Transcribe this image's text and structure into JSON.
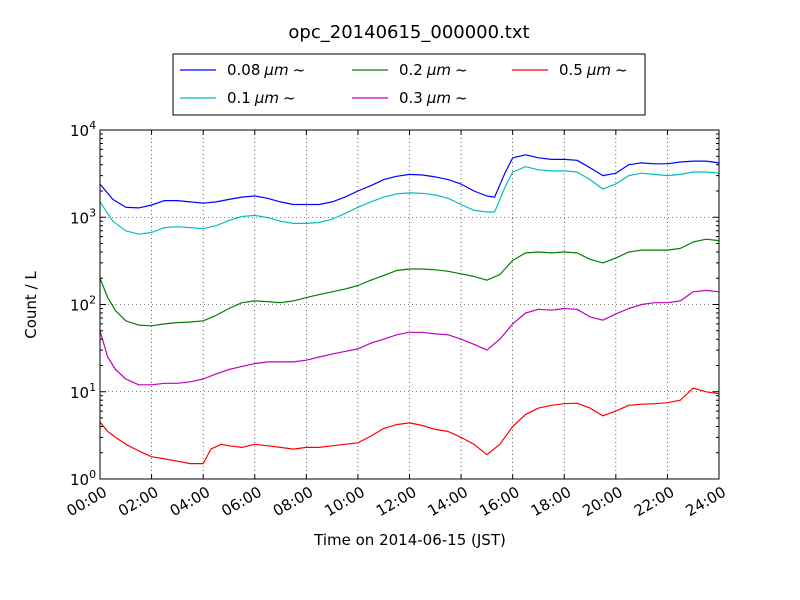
{
  "chart_data": {
    "type": "line",
    "title": "opc_20140615_000000.txt",
    "xlabel": "Time on 2014-06-15 (JST)",
    "ylabel": "Count / L",
    "x_unit": "hours",
    "xlim": [
      0,
      24
    ],
    "ylim": [
      1,
      10000
    ],
    "y_scale": "log",
    "grid": true,
    "legend_placement": "top-center",
    "x_ticks": [
      {
        "value": 0,
        "label": "00:00"
      },
      {
        "value": 2,
        "label": "02:00"
      },
      {
        "value": 4,
        "label": "04:00"
      },
      {
        "value": 6,
        "label": "06:00"
      },
      {
        "value": 8,
        "label": "08:00"
      },
      {
        "value": 10,
        "label": "10:00"
      },
      {
        "value": 12,
        "label": "12:00"
      },
      {
        "value": 14,
        "label": "14:00"
      },
      {
        "value": 16,
        "label": "16:00"
      },
      {
        "value": 18,
        "label": "18:00"
      },
      {
        "value": 20,
        "label": "20:00"
      },
      {
        "value": 22,
        "label": "22:00"
      },
      {
        "value": 24,
        "label": "24:00"
      }
    ],
    "y_ticks": [
      {
        "value": 1,
        "base": "10",
        "exp": "0"
      },
      {
        "value": 10,
        "base": "10",
        "exp": "1"
      },
      {
        "value": 100,
        "base": "10",
        "exp": "2"
      },
      {
        "value": 1000,
        "base": "10",
        "exp": "3"
      },
      {
        "value": 10000,
        "base": "10",
        "exp": "4"
      }
    ],
    "series": [
      {
        "name": "0.08 μm ~",
        "label_size": "0.08",
        "label_unit": "μm",
        "label_tilde": "~",
        "color": "#0000ff",
        "x": [
          0,
          0.5,
          1,
          1.5,
          2,
          2.5,
          3,
          3.5,
          4,
          4.5,
          5,
          5.5,
          6,
          6.5,
          7,
          7.5,
          8,
          8.5,
          9,
          9.5,
          10,
          10.5,
          11,
          11.5,
          12,
          12.5,
          13,
          13.5,
          14,
          14.5,
          15,
          15.3,
          15.7,
          16,
          16.5,
          17,
          17.5,
          18,
          18.5,
          19,
          19.5,
          20,
          20.5,
          21,
          21.5,
          22,
          22.5,
          23,
          23.5,
          24
        ],
        "values": [
          2400,
          1600,
          1300,
          1280,
          1380,
          1550,
          1550,
          1500,
          1450,
          1500,
          1600,
          1700,
          1750,
          1650,
          1500,
          1400,
          1400,
          1400,
          1500,
          1700,
          2000,
          2300,
          2700,
          2950,
          3100,
          3050,
          2900,
          2700,
          2400,
          2000,
          1750,
          1700,
          3200,
          4800,
          5200,
          4800,
          4600,
          4600,
          4500,
          3700,
          3000,
          3200,
          4000,
          4200,
          4100,
          4100,
          4300,
          4400,
          4400,
          4200
        ]
      },
      {
        "name": "0.1 μm ~",
        "label_size": "0.1",
        "label_unit": "μm",
        "label_tilde": "~",
        "color": "#00bfbf",
        "x": [
          0,
          0.5,
          1,
          1.5,
          2,
          2.5,
          3,
          3.5,
          4,
          4.5,
          5,
          5.5,
          6,
          6.5,
          7,
          7.5,
          8,
          8.5,
          9,
          9.5,
          10,
          10.5,
          11,
          11.5,
          12,
          12.5,
          13,
          13.5,
          14,
          14.5,
          15,
          15.3,
          15.7,
          16,
          16.5,
          17,
          17.5,
          18,
          18.5,
          19,
          19.5,
          20,
          20.5,
          21,
          21.5,
          22,
          22.5,
          23,
          23.5,
          24
        ],
        "values": [
          1500,
          900,
          700,
          640,
          670,
          760,
          780,
          760,
          740,
          800,
          920,
          1020,
          1050,
          990,
          900,
          850,
          850,
          870,
          950,
          1100,
          1300,
          1500,
          1700,
          1850,
          1900,
          1880,
          1800,
          1650,
          1400,
          1200,
          1150,
          1150,
          2200,
          3300,
          3800,
          3500,
          3400,
          3400,
          3300,
          2700,
          2100,
          2400,
          3000,
          3200,
          3100,
          3000,
          3100,
          3300,
          3300,
          3200
        ]
      },
      {
        "name": "0.2 μm ~",
        "label_size": "0.2",
        "label_unit": "μm",
        "label_tilde": "~",
        "color": "#008000",
        "x": [
          0,
          0.3,
          0.6,
          1,
          1.5,
          2,
          2.5,
          3,
          3.5,
          4,
          4.5,
          5,
          5.5,
          6,
          6.5,
          7,
          7.5,
          8,
          8.5,
          9,
          9.5,
          10,
          10.5,
          11,
          11.5,
          12,
          12.5,
          13,
          13.5,
          14,
          14.5,
          15,
          15.5,
          16,
          16.5,
          17,
          17.5,
          18,
          18.5,
          19,
          19.5,
          20,
          20.5,
          21,
          21.5,
          22,
          22.5,
          23,
          23.5,
          24
        ],
        "values": [
          200,
          120,
          85,
          65,
          58,
          57,
          60,
          62,
          63,
          65,
          75,
          90,
          105,
          110,
          108,
          105,
          110,
          120,
          130,
          140,
          150,
          165,
          190,
          215,
          245,
          255,
          255,
          250,
          240,
          225,
          210,
          190,
          220,
          320,
          390,
          400,
          390,
          400,
          390,
          330,
          300,
          340,
          400,
          420,
          420,
          420,
          440,
          520,
          560,
          540
        ]
      },
      {
        "name": "0.3 μm ~",
        "label_size": "0.3",
        "label_unit": "μm",
        "label_tilde": "~",
        "color": "#bf00bf",
        "x": [
          0,
          0.3,
          0.6,
          1,
          1.5,
          2,
          2.5,
          3,
          3.5,
          4,
          4.5,
          5,
          5.5,
          6,
          6.5,
          7,
          7.5,
          8,
          8.5,
          9,
          9.5,
          10,
          10.5,
          11,
          11.5,
          12,
          12.5,
          13,
          13.5,
          14,
          14.5,
          15,
          15.5,
          16,
          16.5,
          17,
          17.5,
          18,
          18.5,
          19,
          19.5,
          20,
          20.5,
          21,
          21.5,
          22,
          22.5,
          23,
          23.5,
          24
        ],
        "values": [
          50,
          25,
          18,
          14,
          12,
          12,
          12.5,
          12.5,
          13,
          14,
          16,
          18,
          19.5,
          21,
          22,
          22,
          22,
          23,
          25,
          27,
          29,
          31,
          36,
          40,
          45,
          48,
          48,
          46,
          45,
          40,
          35,
          30,
          40,
          60,
          80,
          88,
          86,
          90,
          88,
          72,
          66,
          78,
          90,
          100,
          105,
          105,
          110,
          140,
          145,
          140
        ]
      },
      {
        "name": "0.5 μm ~",
        "label_size": "0.5",
        "label_unit": "μm",
        "label_tilde": "~",
        "color": "#ff0000",
        "x": [
          0,
          0.3,
          0.6,
          1,
          1.5,
          2,
          2.5,
          3,
          3.5,
          4,
          4.3,
          4.7,
          5,
          5.5,
          6,
          6.5,
          7,
          7.5,
          8,
          8.5,
          9,
          9.5,
          10,
          10.5,
          11,
          11.5,
          12,
          12.5,
          13,
          13.5,
          14,
          14.5,
          15,
          15.5,
          16,
          16.5,
          17,
          17.5,
          18,
          18.5,
          19,
          19.5,
          20,
          20.5,
          21,
          21.5,
          22,
          22.5,
          23,
          23.5,
          24
        ],
        "values": [
          4.5,
          3.5,
          3,
          2.5,
          2.1,
          1.8,
          1.7,
          1.6,
          1.5,
          1.5,
          2.2,
          2.5,
          2.4,
          2.3,
          2.5,
          2.4,
          2.3,
          2.2,
          2.3,
          2.3,
          2.4,
          2.5,
          2.6,
          3.1,
          3.8,
          4.2,
          4.4,
          4.1,
          3.7,
          3.5,
          3.0,
          2.5,
          1.9,
          2.5,
          4.0,
          5.5,
          6.5,
          7.0,
          7.3,
          7.4,
          6.5,
          5.3,
          6.0,
          7.0,
          7.2,
          7.3,
          7.5,
          8.0,
          11,
          10,
          9.5
        ]
      }
    ]
  }
}
